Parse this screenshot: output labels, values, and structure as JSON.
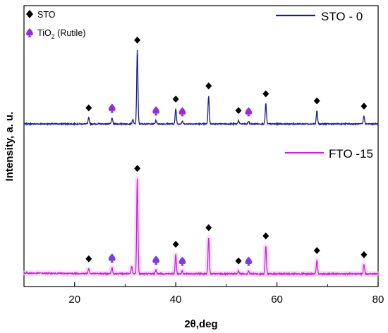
{
  "chart_data": {
    "type": "line",
    "title": "",
    "xlabel": "2θ,deg",
    "ylabel": "Intensity, a. u.",
    "xlim": [
      10,
      80
    ],
    "x_ticks": [
      "20",
      "40",
      "60",
      "80"
    ],
    "x_tick_values": [
      20,
      40,
      60,
      80
    ],
    "y_ticks": "none",
    "grid": false,
    "legend_markers": [
      {
        "symbol": "diamond",
        "label": "STO",
        "color": "#000000"
      },
      {
        "symbol": "spade",
        "label": "TiO",
        "subscript": "2",
        "suffix": " (Rutile)",
        "color": "#9a2bd6"
      }
    ],
    "series": [
      {
        "name": "STO - 0",
        "color": "#1b1f8c",
        "baseline_relative": 0.0,
        "peaks": [
          {
            "x": 22.8,
            "h": 0.07
          },
          {
            "x": 27.4,
            "h": 0.07
          },
          {
            "x": 31.5,
            "h": 0.05
          },
          {
            "x": 32.4,
            "h": 0.84
          },
          {
            "x": 36.1,
            "h": 0.04
          },
          {
            "x": 40.0,
            "h": 0.17
          },
          {
            "x": 41.3,
            "h": 0.03
          },
          {
            "x": 46.5,
            "h": 0.32
          },
          {
            "x": 52.4,
            "h": 0.04
          },
          {
            "x": 54.4,
            "h": 0.03
          },
          {
            "x": 57.8,
            "h": 0.23
          },
          {
            "x": 67.9,
            "h": 0.15
          },
          {
            "x": 77.2,
            "h": 0.09
          }
        ],
        "sto_markers": [
          22.8,
          32.4,
          40.0,
          46.5,
          52.4,
          57.8,
          67.9,
          77.2
        ],
        "rutile_markers": [
          27.4,
          36.1,
          41.3,
          54.4
        ]
      },
      {
        "name": "FTO -15",
        "color": "#d020d8",
        "baseline_relative": 0.0,
        "peaks": [
          {
            "x": 22.8,
            "h": 0.05
          },
          {
            "x": 27.4,
            "h": 0.06
          },
          {
            "x": 31.3,
            "h": 0.07
          },
          {
            "x": 32.4,
            "h": 0.92
          },
          {
            "x": 36.1,
            "h": 0.04
          },
          {
            "x": 40.0,
            "h": 0.19
          },
          {
            "x": 41.3,
            "h": 0.03
          },
          {
            "x": 46.5,
            "h": 0.35
          },
          {
            "x": 52.4,
            "h": 0.03
          },
          {
            "x": 54.4,
            "h": 0.03
          },
          {
            "x": 57.8,
            "h": 0.27
          },
          {
            "x": 67.9,
            "h": 0.13
          },
          {
            "x": 77.2,
            "h": 0.09
          }
        ],
        "sto_markers": [
          22.8,
          32.4,
          40.0,
          46.5,
          52.4,
          57.8,
          67.9,
          77.2
        ],
        "rutile_markers": [
          27.4,
          36.1,
          41.3,
          54.4
        ]
      }
    ]
  }
}
